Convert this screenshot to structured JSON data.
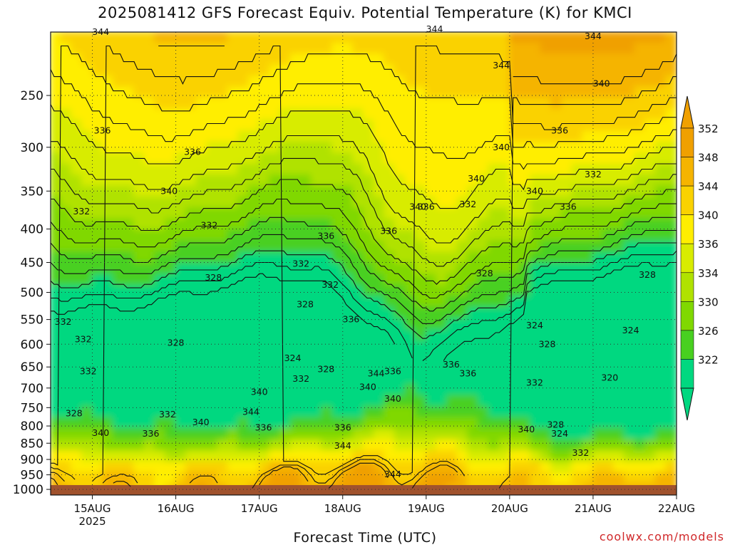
{
  "chart_data": {
    "type": "heatmap",
    "title": "2025081412 GFS Forecast Equiv. Potential Temperature (K) for KMCI",
    "xlabel": "Forecast Time (UTC)",
    "ylabel": "",
    "credit": "coolwx.com/models",
    "x_ticks": [
      "15AUG",
      "16AUG",
      "17AUG",
      "18AUG",
      "19AUG",
      "20AUG",
      "21AUG",
      "22AUG"
    ],
    "x_year_label": "2025",
    "y_ticks": [
      "250",
      "300",
      "350",
      "400",
      "450",
      "500",
      "550",
      "600",
      "650",
      "700",
      "750",
      "800",
      "850",
      "900",
      "950",
      "1000"
    ],
    "colorbar": {
      "ticks": [
        "352",
        "348",
        "344",
        "340",
        "336",
        "334",
        "330",
        "326",
        "322"
      ],
      "colors": [
        "#f0a000",
        "#f5b400",
        "#fad200",
        "#ffee00",
        "#d8ec00",
        "#b0e200",
        "#80d800",
        "#48d020",
        "#00d880"
      ],
      "extend": "both"
    },
    "contour_labels": [
      {
        "t": 0.1,
        "p": 200,
        "v": "344"
      },
      {
        "t": 0.92,
        "p": 350,
        "v": "340"
      },
      {
        "t": 3.9,
        "p": 370,
        "v": "340"
      },
      {
        "t": 4.1,
        "p": 198,
        "v": "344"
      },
      {
        "t": 4.9,
        "p": 225,
        "v": "344"
      },
      {
        "t": 6.0,
        "p": 203,
        "v": "344"
      },
      {
        "t": 6.1,
        "p": 240,
        "v": "340"
      },
      {
        "t": 4.9,
        "p": 300,
        "v": "340"
      },
      {
        "t": 4.6,
        "p": 335,
        "v": "340"
      },
      {
        "t": 5.3,
        "p": 350,
        "v": "340"
      },
      {
        "t": 0.12,
        "p": 283,
        "v": "336"
      },
      {
        "t": 1.2,
        "p": 305,
        "v": "336"
      },
      {
        "t": 4.0,
        "p": 370,
        "v": "336"
      },
      {
        "t": 5.7,
        "p": 370,
        "v": "336"
      },
      {
        "t": 2.8,
        "p": 410,
        "v": "336"
      },
      {
        "t": 3.55,
        "p": 403,
        "v": "336"
      },
      {
        "t": 5.6,
        "p": 283,
        "v": "336"
      },
      {
        "t": 6.0,
        "p": 330,
        "v": "332"
      },
      {
        "t": -0.13,
        "p": 376,
        "v": "332"
      },
      {
        "t": 1.4,
        "p": 395,
        "v": "332"
      },
      {
        "t": 2.5,
        "p": 452,
        "v": "332"
      },
      {
        "t": 2.85,
        "p": 487,
        "v": "332"
      },
      {
        "t": 4.5,
        "p": 367,
        "v": "332"
      },
      {
        "t": 1.45,
        "p": 475,
        "v": "328"
      },
      {
        "t": 2.55,
        "p": 522,
        "v": "328"
      },
      {
        "t": 4.7,
        "p": 468,
        "v": "328"
      },
      {
        "t": 6.65,
        "p": 470,
        "v": "328"
      },
      {
        "t": -0.35,
        "p": 555,
        "v": "332"
      },
      {
        "t": -0.11,
        "p": 590,
        "v": "332"
      },
      {
        "t": -0.05,
        "p": 660,
        "v": "332"
      },
      {
        "t": 1.0,
        "p": 597,
        "v": "328"
      },
      {
        "t": 2.4,
        "p": 630,
        "v": "324"
      },
      {
        "t": 2.5,
        "p": 678,
        "v": "332"
      },
      {
        "t": 2.8,
        "p": 655,
        "v": "328"
      },
      {
        "t": 3.1,
        "p": 550,
        "v": "336"
      },
      {
        "t": 3.4,
        "p": 665,
        "v": "344"
      },
      {
        "t": 3.6,
        "p": 660,
        "v": "336"
      },
      {
        "t": 3.3,
        "p": 698,
        "v": "340"
      },
      {
        "t": 3.6,
        "p": 727,
        "v": "340"
      },
      {
        "t": 4.3,
        "p": 645,
        "v": "336"
      },
      {
        "t": 4.5,
        "p": 665,
        "v": "336"
      },
      {
        "t": 5.3,
        "p": 562,
        "v": "324"
      },
      {
        "t": 5.45,
        "p": 600,
        "v": "328"
      },
      {
        "t": 6.45,
        "p": 572,
        "v": "324"
      },
      {
        "t": 6.2,
        "p": 675,
        "v": "320"
      },
      {
        "t": 5.3,
        "p": 687,
        "v": "332"
      },
      {
        "t": -0.22,
        "p": 766,
        "v": "328"
      },
      {
        "t": 0.1,
        "p": 820,
        "v": "340"
      },
      {
        "t": 0.7,
        "p": 822,
        "v": "336"
      },
      {
        "t": 1.3,
        "p": 790,
        "v": "340"
      },
      {
        "t": 0.9,
        "p": 768,
        "v": "332"
      },
      {
        "t": 1.9,
        "p": 762,
        "v": "344"
      },
      {
        "t": 2.05,
        "p": 805,
        "v": "336"
      },
      {
        "t": 2.0,
        "p": 710,
        "v": "340"
      },
      {
        "t": 3.0,
        "p": 805,
        "v": "336"
      },
      {
        "t": 3.0,
        "p": 858,
        "v": "344"
      },
      {
        "t": 3.6,
        "p": 948,
        "v": "344"
      },
      {
        "t": 5.2,
        "p": 810,
        "v": "340"
      },
      {
        "t": 5.55,
        "p": 797,
        "v": "328"
      },
      {
        "t": 5.6,
        "p": 822,
        "v": "324"
      },
      {
        "t": 5.85,
        "p": 880,
        "v": "332"
      }
    ]
  }
}
